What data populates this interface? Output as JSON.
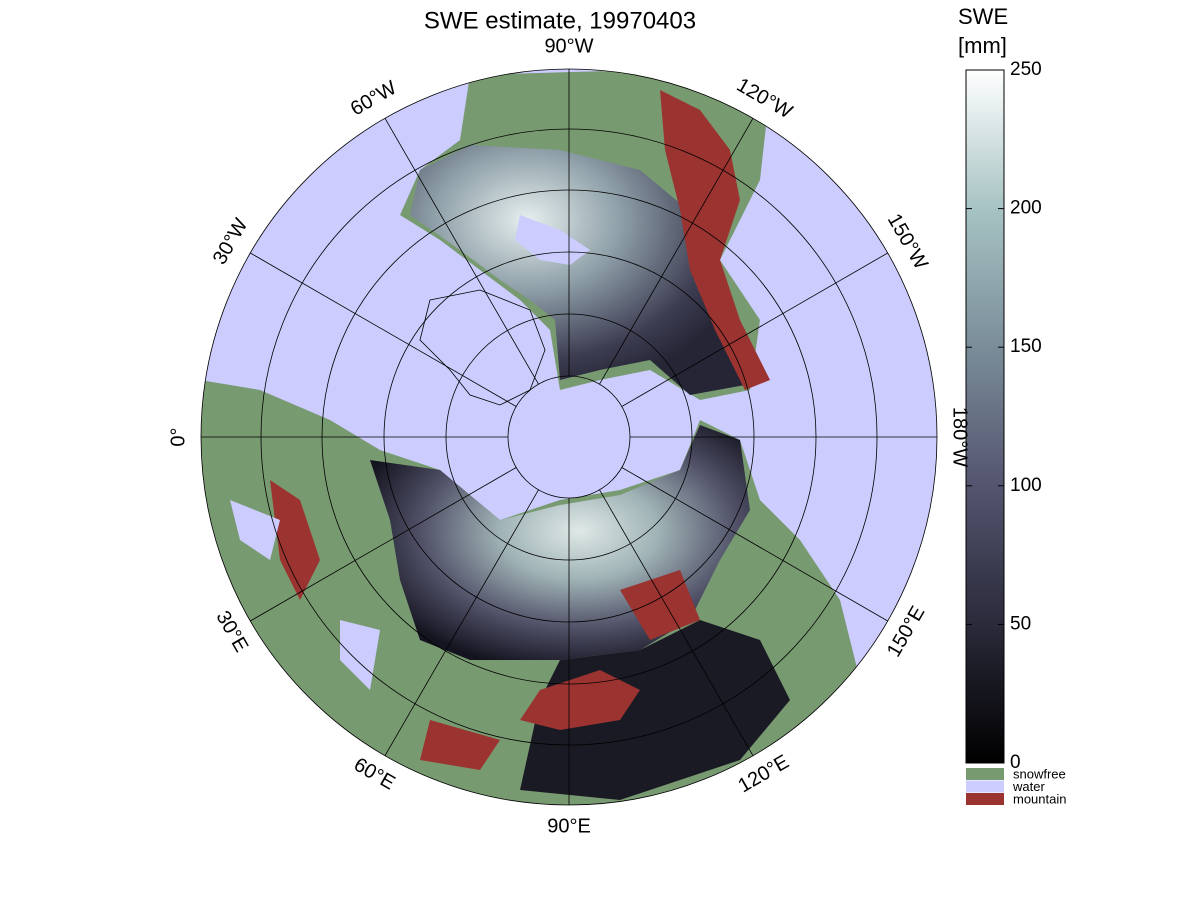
{
  "title": "SWE estimate, 19970403",
  "colorbar": {
    "label": [
      "SWE",
      "[mm]"
    ],
    "lim": [
      0,
      250
    ],
    "ticks": [
      0,
      50,
      100,
      150,
      200,
      250
    ]
  },
  "legend": [
    {
      "name": "snowfree",
      "color": "#789a71"
    },
    {
      "name": "water",
      "color": "#ccccff"
    },
    {
      "name": "mountain",
      "color": "#9b3330"
    }
  ],
  "meridian_labels": [
    "0°",
    "30°W",
    "60°W",
    "90°W",
    "120°W",
    "150°W",
    "180°W",
    "150°E",
    "120°E",
    "90°E",
    "60°E",
    "30°E"
  ]
}
